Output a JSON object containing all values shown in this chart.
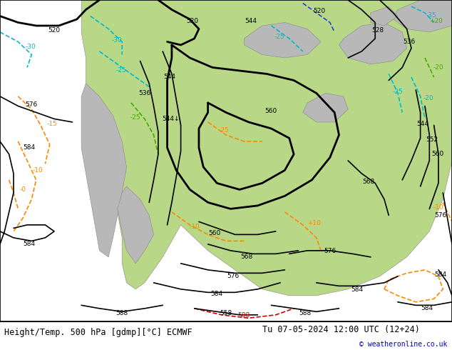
{
  "title_left": "Height/Temp. 500 hPa [gdmp][°C] ECMWF",
  "title_right": "Tu 07-05-2024 12:00 UTC (12+24)",
  "copyright": "© weatheronline.co.uk",
  "bg_ocean": "#d8d8d8",
  "bg_land_green": "#b8d888",
  "bg_land_gray": "#b8b8b8",
  "bottom_bar_color": "#ffffff",
  "title_fontsize": 8.5,
  "copyright_color": "#0000cc",
  "title_color": "#000000",
  "black": "#000000",
  "orange": "#ff8800",
  "cyan": "#00bbcc",
  "green_c": "#44aa00",
  "red_c": "#cc0000",
  "blue_c": "#2244cc",
  "lw_thick": 2.0,
  "lw_thin": 1.2,
  "lfs": 6.5
}
